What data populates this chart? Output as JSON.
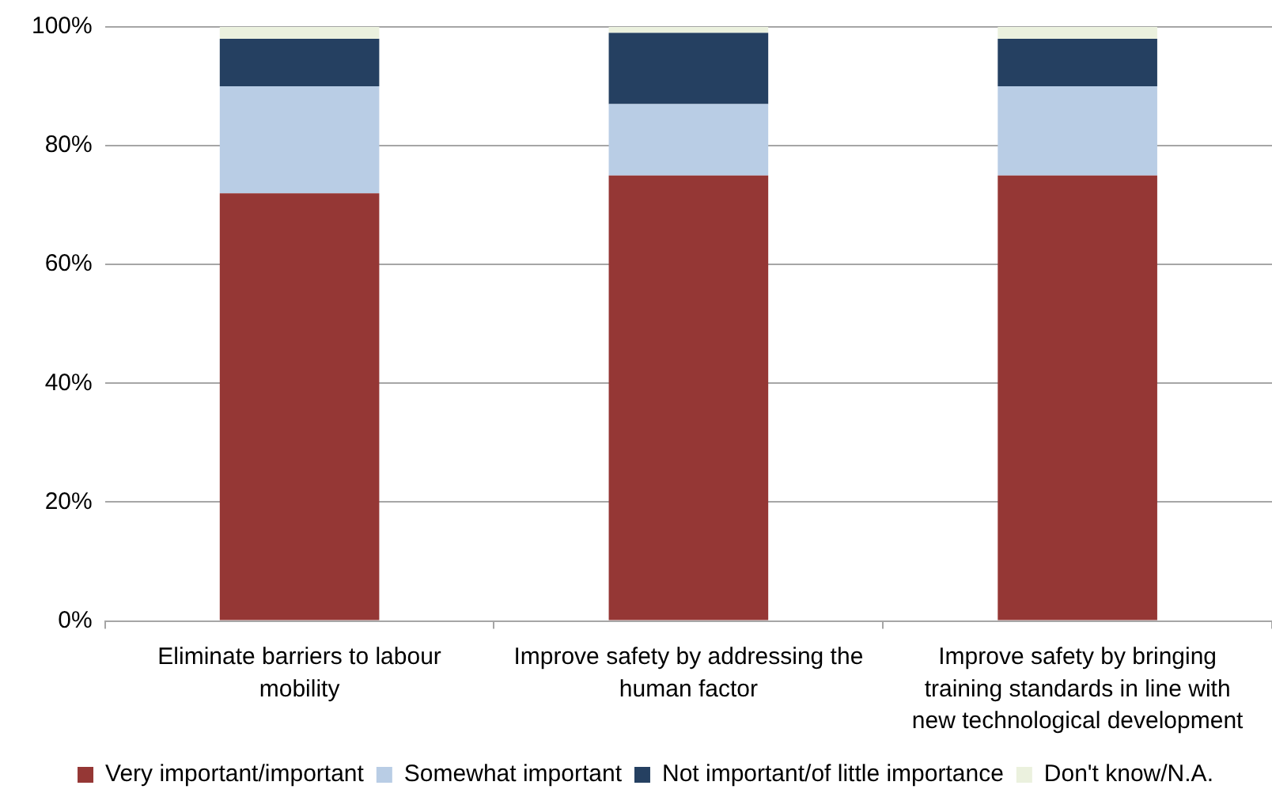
{
  "chart_data": {
    "type": "bar",
    "stacked": true,
    "categories": [
      "Eliminate barriers to labour mobility",
      "Improve safety by addressing the human factor",
      "Improve safety by bringing training standards in line with new technological development"
    ],
    "series": [
      {
        "name": "Very important/important",
        "color": "#953735",
        "values": [
          72,
          75,
          75
        ]
      },
      {
        "name": "Somewhat important",
        "color": "#b9cde5",
        "values": [
          18,
          12,
          15
        ]
      },
      {
        "name": "Not important/of little importance",
        "color": "#254061",
        "values": [
          8,
          12,
          8
        ]
      },
      {
        "name": "Don't know/N.A.",
        "color": "#ebf1de",
        "values": [
          2,
          1,
          2
        ]
      }
    ],
    "ylim": [
      0,
      100
    ],
    "yticks": [
      {
        "value": 0,
        "label": "0%"
      },
      {
        "value": 20,
        "label": "20%"
      },
      {
        "value": 40,
        "label": "40%"
      },
      {
        "value": 60,
        "label": "60%"
      },
      {
        "value": 80,
        "label": "80%"
      },
      {
        "value": 100,
        "label": "100%"
      }
    ],
    "grid": "y",
    "legend": "bottom"
  }
}
